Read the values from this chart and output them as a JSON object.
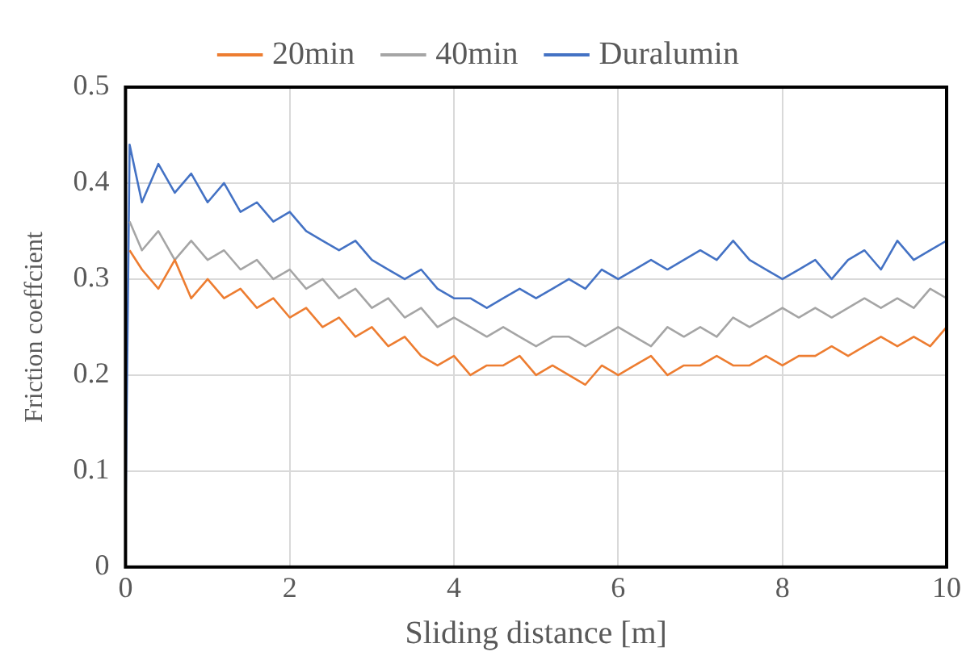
{
  "chart_data": {
    "type": "line",
    "xlabel": "Sliding distance [m]",
    "ylabel": "Friction coeffcient",
    "x": [
      0,
      0.05,
      0.2,
      0.4,
      0.6,
      0.8,
      1,
      1.2,
      1.4,
      1.6,
      1.8,
      2,
      2.2,
      2.4,
      2.6,
      2.8,
      3,
      3.2,
      3.4,
      3.6,
      3.8,
      4,
      4.2,
      4.4,
      4.6,
      4.8,
      5,
      5.2,
      5.4,
      5.6,
      5.8,
      6,
      6.2,
      6.4,
      6.6,
      6.8,
      7,
      7.2,
      7.4,
      7.6,
      7.8,
      8,
      8.2,
      8.4,
      8.6,
      8.8,
      9,
      9.2,
      9.4,
      9.6,
      9.8,
      10
    ],
    "series": [
      {
        "name": "20min",
        "color": "#ed7d31",
        "values": [
          null,
          0.33,
          0.31,
          0.29,
          0.32,
          0.28,
          0.3,
          0.28,
          0.29,
          0.27,
          0.28,
          0.26,
          0.27,
          0.25,
          0.26,
          0.24,
          0.25,
          0.23,
          0.24,
          0.22,
          0.21,
          0.22,
          0.2,
          0.21,
          0.21,
          0.22,
          0.2,
          0.21,
          0.2,
          0.19,
          0.21,
          0.2,
          0.21,
          0.22,
          0.2,
          0.21,
          0.21,
          0.22,
          0.21,
          0.21,
          0.22,
          0.21,
          0.22,
          0.22,
          0.23,
          0.22,
          0.23,
          0.24,
          0.23,
          0.24,
          0.23,
          0.25
        ]
      },
      {
        "name": "40min",
        "color": "#a5a5a5",
        "values": [
          null,
          0.36,
          0.33,
          0.35,
          0.32,
          0.34,
          0.32,
          0.33,
          0.31,
          0.32,
          0.3,
          0.31,
          0.29,
          0.3,
          0.28,
          0.29,
          0.27,
          0.28,
          0.26,
          0.27,
          0.25,
          0.26,
          0.25,
          0.24,
          0.25,
          0.24,
          0.23,
          0.24,
          0.24,
          0.23,
          0.24,
          0.25,
          0.24,
          0.23,
          0.25,
          0.24,
          0.25,
          0.24,
          0.26,
          0.25,
          0.26,
          0.27,
          0.26,
          0.27,
          0.26,
          0.27,
          0.28,
          0.27,
          0.28,
          0.27,
          0.29,
          0.28
        ]
      },
      {
        "name": "Duralumin",
        "color": "#4472c4",
        "values": [
          0.05,
          0.44,
          0.38,
          0.42,
          0.39,
          0.41,
          0.38,
          0.4,
          0.37,
          0.38,
          0.36,
          0.37,
          0.35,
          0.34,
          0.33,
          0.34,
          0.32,
          0.31,
          0.3,
          0.31,
          0.29,
          0.28,
          0.28,
          0.27,
          0.28,
          0.29,
          0.28,
          0.29,
          0.3,
          0.29,
          0.31,
          0.3,
          0.31,
          0.32,
          0.31,
          0.32,
          0.33,
          0.32,
          0.34,
          0.32,
          0.31,
          0.3,
          0.31,
          0.32,
          0.3,
          0.32,
          0.33,
          0.31,
          0.34,
          0.32,
          0.33,
          0.34
        ]
      }
    ],
    "xlim": [
      0,
      10
    ],
    "xticks": [
      0,
      2,
      4,
      6,
      8,
      10
    ],
    "ylim": [
      0,
      0.5
    ],
    "yticks": [
      0,
      0.1,
      0.2,
      0.3,
      0.4,
      0.5
    ],
    "grid": true,
    "legend": "top",
    "marker": "none",
    "line_style": "solid"
  }
}
